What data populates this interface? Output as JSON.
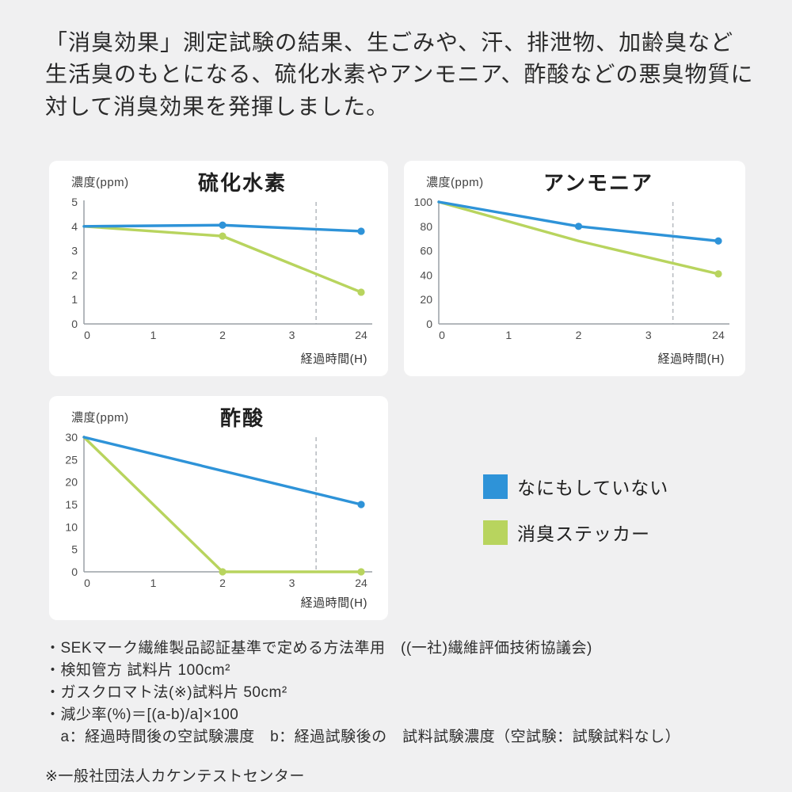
{
  "page": {
    "background": "#f0f0f1",
    "header_text": "「消臭効果」測定試験の結果、生ごみや、汗、排泄物、加齢臭など生活臭のもとになる、硫化水素やアンモニア、酢酸などの悪臭物質に対して消臭効果を発揮しました。"
  },
  "colors": {
    "untreated_blue": "#2e93d8",
    "sticker_green": "#b8d45e",
    "axis_gray": "#9aa0a6",
    "dashed_gray": "#b9bdc2"
  },
  "legend": {
    "items": [
      {
        "label": "なにもしていない",
        "color": "#2e93d8"
      },
      {
        "label": "消臭ステッカー",
        "color": "#b8d45e"
      }
    ]
  },
  "chart_data": [
    {
      "type": "line",
      "title": "硫化水素",
      "ylabel": "濃度(ppm)",
      "xlabel": "経過時間(H)",
      "x_tick_values": [
        0,
        1,
        2,
        3,
        24
      ],
      "x_tick_labels": [
        "0",
        "1",
        "2",
        "3",
        "24"
      ],
      "y_ticks": [
        0,
        1,
        2,
        3,
        4,
        5
      ],
      "ymax": 5,
      "dashed_tick_pos": 3.35,
      "grid": false,
      "series": [
        {
          "name": "消臭ステッカー",
          "color": "#b8d45e",
          "points": [
            [
              0,
              4
            ],
            [
              2,
              3.6
            ],
            [
              24,
              1.3
            ]
          ],
          "dots": [
            1,
            2
          ]
        },
        {
          "name": "なにもしていない",
          "color": "#2e93d8",
          "points": [
            [
              0,
              4
            ],
            [
              2,
              4.05
            ],
            [
              24,
              3.8
            ]
          ],
          "dots": [
            1,
            2
          ]
        }
      ]
    },
    {
      "type": "line",
      "title": "アンモニア",
      "ylabel": "濃度(ppm)",
      "xlabel": "経過時間(H)",
      "x_tick_values": [
        0,
        1,
        2,
        3,
        24
      ],
      "x_tick_labels": [
        "0",
        "1",
        "2",
        "3",
        "24"
      ],
      "y_ticks": [
        0,
        20,
        40,
        60,
        80,
        100
      ],
      "ymax": 100,
      "dashed_tick_pos": 3.35,
      "grid": false,
      "series": [
        {
          "name": "消臭ステッカー",
          "color": "#b8d45e",
          "points": [
            [
              0,
              100
            ],
            [
              2,
              68
            ],
            [
              24,
              41
            ]
          ],
          "dots": [
            2
          ]
        },
        {
          "name": "なにもしていない",
          "color": "#2e93d8",
          "points": [
            [
              0,
              100
            ],
            [
              2,
              80
            ],
            [
              24,
              68
            ]
          ],
          "dots": [
            1,
            2
          ]
        }
      ]
    },
    {
      "type": "line",
      "title": "酢酸",
      "ylabel": "濃度(ppm)",
      "xlabel": "経過時間(H)",
      "x_tick_values": [
        0,
        1,
        2,
        3,
        24
      ],
      "x_tick_labels": [
        "0",
        "1",
        "2",
        "3",
        "24"
      ],
      "y_ticks": [
        0,
        5,
        10,
        15,
        20,
        25,
        30
      ],
      "ymax": 30,
      "dashed_tick_pos": 3.35,
      "grid": false,
      "series": [
        {
          "name": "消臭ステッカー",
          "color": "#b8d45e",
          "points": [
            [
              0,
              30
            ],
            [
              2,
              0
            ],
            [
              24,
              0
            ]
          ],
          "dots": [
            1,
            2
          ]
        },
        {
          "name": "なにもしていない",
          "color": "#2e93d8",
          "points": [
            [
              0,
              30
            ],
            [
              24,
              15
            ]
          ],
          "dots": [
            1
          ]
        }
      ]
    }
  ],
  "footer": {
    "notes": [
      "・SEKマーク繊維製品認証基準で定める方法準用　((一社)繊維評価技術協議会)",
      "・検知管方 試料片 100cm²",
      "・ガスクロマト法(※)試料片 50cm²",
      "・減少率(%)＝[(a-b)/a]×100",
      "　a：経過時間後の空試験濃度　b：経過試験後の　試料試験濃度（空試験：試験試料なし）"
    ],
    "org_note": "※一般社団法人カケンテストセンター"
  }
}
